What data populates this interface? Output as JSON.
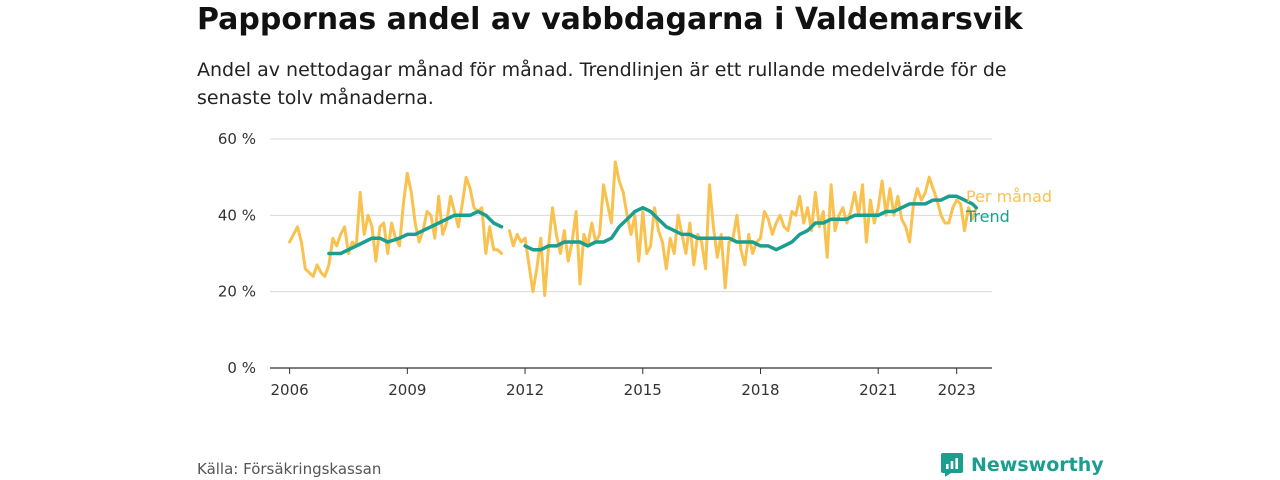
{
  "title": "Pappornas andel av vabbdagarna i Valdemarsvik",
  "subtitle": "Andel av nettodagar månad för månad. Trendlinjen är ett rullande medelvärde för de senaste tolv månaderna.",
  "source": "Källa: Försäkringskassan",
  "brand": "Newsworthy",
  "colors": {
    "monthly": "#f9c250",
    "trend": "#1a9e8f",
    "grid": "#d9d9d9",
    "brand": "#1a9e8f"
  },
  "chart_data": {
    "type": "line",
    "x_unit": "year",
    "xlim": [
      2005.5,
      2023.9
    ],
    "ylim": [
      0,
      60
    ],
    "y_ticks": [
      0,
      20,
      40,
      60
    ],
    "y_tick_labels": [
      "0 %",
      "20 %",
      "40 %",
      "60 %"
    ],
    "x_ticks": [
      2006,
      2009,
      2012,
      2015,
      2018,
      2021,
      2023
    ],
    "x_tick_labels": [
      "2006",
      "2009",
      "2012",
      "2015",
      "2018",
      "2021",
      "2023"
    ],
    "grid": true,
    "legend_placement": "right-end-of-lines",
    "series": [
      {
        "name": "Per månad",
        "color": "#f9c250",
        "segments": [
          [
            [
              2006.0,
              33
            ],
            [
              2006.2,
              37
            ],
            [
              2006.3,
              33
            ],
            [
              2006.4,
              26
            ],
            [
              2006.5,
              25
            ],
            [
              2006.6,
              24
            ],
            [
              2006.7,
              27
            ],
            [
              2006.8,
              25
            ],
            [
              2006.9,
              24
            ],
            [
              2007.0,
              27
            ],
            [
              2007.1,
              34
            ],
            [
              2007.2,
              32
            ],
            [
              2007.3,
              35
            ],
            [
              2007.4,
              37
            ],
            [
              2007.5,
              30
            ],
            [
              2007.6,
              33
            ],
            [
              2007.7,
              32
            ],
            [
              2007.8,
              46
            ],
            [
              2007.9,
              35
            ],
            [
              2008.0,
              40
            ],
            [
              2008.1,
              37
            ],
            [
              2008.2,
              28
            ],
            [
              2008.3,
              37
            ],
            [
              2008.4,
              38
            ],
            [
              2008.5,
              30
            ],
            [
              2008.6,
              38
            ],
            [
              2008.7,
              34
            ],
            [
              2008.8,
              32
            ],
            [
              2008.9,
              43
            ],
            [
              2009.0,
              51
            ],
            [
              2009.1,
              46
            ],
            [
              2009.2,
              38
            ],
            [
              2009.3,
              33
            ],
            [
              2009.4,
              36
            ],
            [
              2009.5,
              41
            ],
            [
              2009.6,
              40
            ],
            [
              2009.7,
              34
            ],
            [
              2009.8,
              45
            ],
            [
              2009.9,
              35
            ],
            [
              2010.0,
              38
            ],
            [
              2010.1,
              45
            ],
            [
              2010.2,
              41
            ],
            [
              2010.3,
              37
            ],
            [
              2010.4,
              43
            ],
            [
              2010.5,
              50
            ],
            [
              2010.6,
              47
            ],
            [
              2010.7,
              42
            ],
            [
              2010.8,
              41
            ],
            [
              2010.9,
              42
            ],
            [
              2011.0,
              30
            ],
            [
              2011.1,
              37
            ],
            [
              2011.2,
              31
            ],
            [
              2011.3,
              31
            ],
            [
              2011.4,
              30
            ]
          ],
          [
            [
              2011.6,
              36
            ],
            [
              2011.7,
              32
            ],
            [
              2011.8,
              35
            ],
            [
              2011.9,
              33
            ],
            [
              2012.0,
              34
            ],
            [
              2012.1,
              27
            ],
            [
              2012.2,
              20
            ],
            [
              2012.3,
              26
            ],
            [
              2012.4,
              34
            ],
            [
              2012.5,
              19
            ],
            [
              2012.6,
              32
            ],
            [
              2012.7,
              42
            ],
            [
              2012.8,
              35
            ],
            [
              2012.9,
              30
            ],
            [
              2013.0,
              36
            ],
            [
              2013.1,
              28
            ],
            [
              2013.2,
              33
            ],
            [
              2013.3,
              41
            ],
            [
              2013.4,
              22
            ],
            [
              2013.5,
              35
            ],
            [
              2013.6,
              32
            ],
            [
              2013.7,
              38
            ],
            [
              2013.8,
              33
            ],
            [
              2013.9,
              35
            ],
            [
              2014.0,
              48
            ],
            [
              2014.1,
              43
            ],
            [
              2014.2,
              38
            ],
            [
              2014.3,
              54
            ],
            [
              2014.4,
              49
            ],
            [
              2014.5,
              46
            ],
            [
              2014.6,
              40
            ],
            [
              2014.7,
              35
            ],
            [
              2014.8,
              40
            ],
            [
              2014.9,
              28
            ],
            [
              2015.0,
              41
            ],
            [
              2015.1,
              30
            ],
            [
              2015.2,
              32
            ],
            [
              2015.3,
              42
            ],
            [
              2015.4,
              36
            ],
            [
              2015.5,
              33
            ],
            [
              2015.6,
              26
            ],
            [
              2015.7,
              34
            ],
            [
              2015.8,
              30
            ],
            [
              2015.9,
              40
            ],
            [
              2016.0,
              35
            ],
            [
              2016.1,
              30
            ],
            [
              2016.2,
              38
            ],
            [
              2016.3,
              27
            ],
            [
              2016.4,
              35
            ],
            [
              2016.5,
              33
            ],
            [
              2016.6,
              26
            ],
            [
              2016.7,
              48
            ],
            [
              2016.8,
              37
            ],
            [
              2016.9,
              29
            ],
            [
              2017.0,
              35
            ],
            [
              2017.1,
              21
            ],
            [
              2017.2,
              33
            ],
            [
              2017.3,
              34
            ],
            [
              2017.4,
              40
            ],
            [
              2017.5,
              31
            ],
            [
              2017.6,
              27
            ],
            [
              2017.7,
              35
            ],
            [
              2017.8,
              30
            ],
            [
              2017.9,
              33
            ],
            [
              2018.0,
              34
            ],
            [
              2018.1,
              41
            ],
            [
              2018.2,
              39
            ],
            [
              2018.3,
              35
            ],
            [
              2018.4,
              38
            ],
            [
              2018.5,
              40
            ],
            [
              2018.6,
              37
            ],
            [
              2018.7,
              36
            ],
            [
              2018.8,
              41
            ],
            [
              2018.9,
              40
            ],
            [
              2019.0,
              45
            ],
            [
              2019.1,
              38
            ],
            [
              2019.2,
              42
            ],
            [
              2019.3,
              36
            ],
            [
              2019.4,
              46
            ],
            [
              2019.5,
              37
            ],
            [
              2019.6,
              41
            ],
            [
              2019.7,
              29
            ],
            [
              2019.8,
              48
            ],
            [
              2019.9,
              36
            ],
            [
              2020.0,
              40
            ],
            [
              2020.1,
              42
            ],
            [
              2020.2,
              38
            ],
            [
              2020.3,
              41
            ],
            [
              2020.4,
              46
            ],
            [
              2020.5,
              40
            ],
            [
              2020.6,
              48
            ],
            [
              2020.7,
              33
            ],
            [
              2020.8,
              44
            ],
            [
              2020.9,
              38
            ],
            [
              2021.0,
              42
            ],
            [
              2021.1,
              49
            ],
            [
              2021.2,
              40
            ],
            [
              2021.3,
              47
            ],
            [
              2021.4,
              40
            ],
            [
              2021.5,
              45
            ],
            [
              2021.6,
              39
            ],
            [
              2021.7,
              37
            ],
            [
              2021.8,
              33
            ],
            [
              2021.9,
              43
            ],
            [
              2022.0,
              47
            ],
            [
              2022.1,
              44
            ],
            [
              2022.2,
              46
            ],
            [
              2022.3,
              50
            ],
            [
              2022.4,
              47
            ],
            [
              2022.5,
              44
            ],
            [
              2022.6,
              40
            ],
            [
              2022.7,
              38
            ],
            [
              2022.8,
              38
            ],
            [
              2022.9,
              42
            ],
            [
              2023.0,
              44
            ],
            [
              2023.1,
              43
            ],
            [
              2023.2,
              36
            ],
            [
              2023.3,
              42
            ],
            [
              2023.4,
              39
            ],
            [
              2023.5,
              42
            ]
          ]
        ]
      },
      {
        "name": "Trend",
        "color": "#1a9e8f",
        "segments": [
          [
            [
              2007.0,
              30
            ],
            [
              2007.3,
              30
            ],
            [
              2007.5,
              31
            ],
            [
              2007.7,
              32
            ],
            [
              2007.9,
              33
            ],
            [
              2008.1,
              34
            ],
            [
              2008.3,
              34
            ],
            [
              2008.5,
              33
            ],
            [
              2008.8,
              34
            ],
            [
              2009.0,
              35
            ],
            [
              2009.2,
              35
            ],
            [
              2009.4,
              36
            ],
            [
              2009.6,
              37
            ],
            [
              2009.8,
              38
            ],
            [
              2010.0,
              39
            ],
            [
              2010.2,
              40
            ],
            [
              2010.4,
              40
            ],
            [
              2010.6,
              40
            ],
            [
              2010.8,
              41
            ],
            [
              2011.0,
              40
            ],
            [
              2011.2,
              38
            ],
            [
              2011.4,
              37
            ]
          ],
          [
            [
              2012.0,
              32
            ],
            [
              2012.2,
              31
            ],
            [
              2012.4,
              31
            ],
            [
              2012.6,
              32
            ],
            [
              2012.8,
              32
            ],
            [
              2013.0,
              33
            ],
            [
              2013.2,
              33
            ],
            [
              2013.4,
              33
            ],
            [
              2013.6,
              32
            ],
            [
              2013.8,
              33
            ],
            [
              2014.0,
              33
            ],
            [
              2014.2,
              34
            ],
            [
              2014.4,
              37
            ],
            [
              2014.6,
              39
            ],
            [
              2014.8,
              41
            ],
            [
              2015.0,
              42
            ],
            [
              2015.2,
              41
            ],
            [
              2015.4,
              39
            ],
            [
              2015.6,
              37
            ],
            [
              2015.8,
              36
            ],
            [
              2016.0,
              35
            ],
            [
              2016.2,
              35
            ],
            [
              2016.4,
              34
            ],
            [
              2016.6,
              34
            ],
            [
              2016.8,
              34
            ],
            [
              2017.0,
              34
            ],
            [
              2017.2,
              34
            ],
            [
              2017.4,
              33
            ],
            [
              2017.6,
              33
            ],
            [
              2017.8,
              33
            ],
            [
              2018.0,
              32
            ],
            [
              2018.2,
              32
            ],
            [
              2018.4,
              31
            ],
            [
              2018.6,
              32
            ],
            [
              2018.8,
              33
            ],
            [
              2019.0,
              35
            ],
            [
              2019.2,
              36
            ],
            [
              2019.4,
              38
            ],
            [
              2019.6,
              38
            ],
            [
              2019.8,
              39
            ],
            [
              2020.0,
              39
            ],
            [
              2020.2,
              39
            ],
            [
              2020.4,
              40
            ],
            [
              2020.6,
              40
            ],
            [
              2020.8,
              40
            ],
            [
              2021.0,
              40
            ],
            [
              2021.2,
              41
            ],
            [
              2021.4,
              41
            ],
            [
              2021.6,
              42
            ],
            [
              2021.8,
              43
            ],
            [
              2022.0,
              43
            ],
            [
              2022.2,
              43
            ],
            [
              2022.4,
              44
            ],
            [
              2022.6,
              44
            ],
            [
              2022.8,
              45
            ],
            [
              2023.0,
              45
            ],
            [
              2023.2,
              44
            ],
            [
              2023.4,
              43
            ],
            [
              2023.5,
              42
            ]
          ]
        ]
      }
    ]
  }
}
